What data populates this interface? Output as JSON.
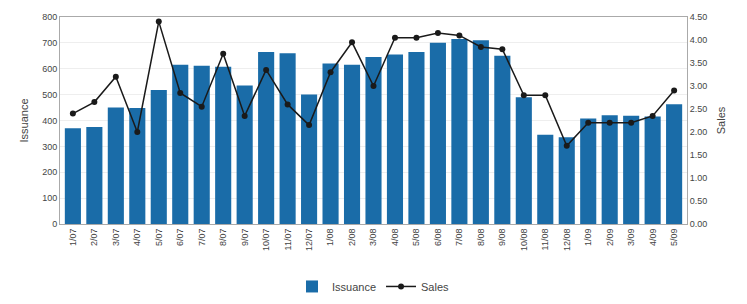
{
  "chart_data": {
    "type": "bar",
    "categories": [
      "1/07",
      "2/07",
      "3/07",
      "4/07",
      "5/07",
      "6/07",
      "7/07",
      "8/07",
      "9/07",
      "10/07",
      "11/07",
      "12/07",
      "1/08",
      "2/08",
      "3/08",
      "4/08",
      "5/08",
      "6/08",
      "7/08",
      "8/08",
      "9/08",
      "10/08",
      "11/08",
      "12/08",
      "1/09",
      "2/09",
      "3/09",
      "4/09",
      "5/09"
    ],
    "series": [
      {
        "name": "Issuance",
        "type": "bar",
        "color": "#1a6ca8",
        "values": [
          370,
          375,
          450,
          448,
          518,
          615,
          612,
          608,
          535,
          665,
          660,
          500,
          620,
          615,
          645,
          655,
          665,
          700,
          715,
          710,
          650,
          490,
          345,
          335,
          408,
          420,
          418,
          415,
          463
        ]
      },
      {
        "name": "Sales",
        "type": "line",
        "axis": "y2",
        "color": "#1a1a1a",
        "marker": "circle",
        "line_style": "solid",
        "values": [
          2.4,
          2.65,
          3.2,
          2.0,
          4.4,
          2.85,
          2.55,
          3.7,
          2.35,
          3.35,
          2.6,
          2.15,
          3.3,
          3.95,
          3.0,
          4.05,
          4.05,
          4.15,
          4.1,
          3.85,
          3.8,
          2.8,
          2.8,
          1.7,
          2.2,
          2.2,
          2.2,
          2.35,
          2.9
        ]
      }
    ],
    "ylabel": "Issuance",
    "y2label": "Sales",
    "ylim": [
      0,
      800
    ],
    "yticks": [
      0,
      100,
      200,
      300,
      400,
      500,
      600,
      700,
      800
    ],
    "y2lim": [
      0.0,
      4.5
    ],
    "y2ticks": [
      {
        "value": 0.0,
        "label": "0.00"
      },
      {
        "value": 0.5,
        "label": "0.50"
      },
      {
        "value": 1.0,
        "label": "1.00"
      },
      {
        "value": 1.5,
        "label": "1.50"
      },
      {
        "value": 2.0,
        "label": "2.00"
      },
      {
        "value": 2.5,
        "label": "2.50"
      },
      {
        "value": 3.0,
        "label": "3.00"
      },
      {
        "value": 3.5,
        "label": "3.50"
      },
      {
        "value": 4.0,
        "label": "4.00"
      },
      {
        "value": 4.5,
        "label": "4.50"
      }
    ],
    "grid": true,
    "legend": "bottom"
  }
}
